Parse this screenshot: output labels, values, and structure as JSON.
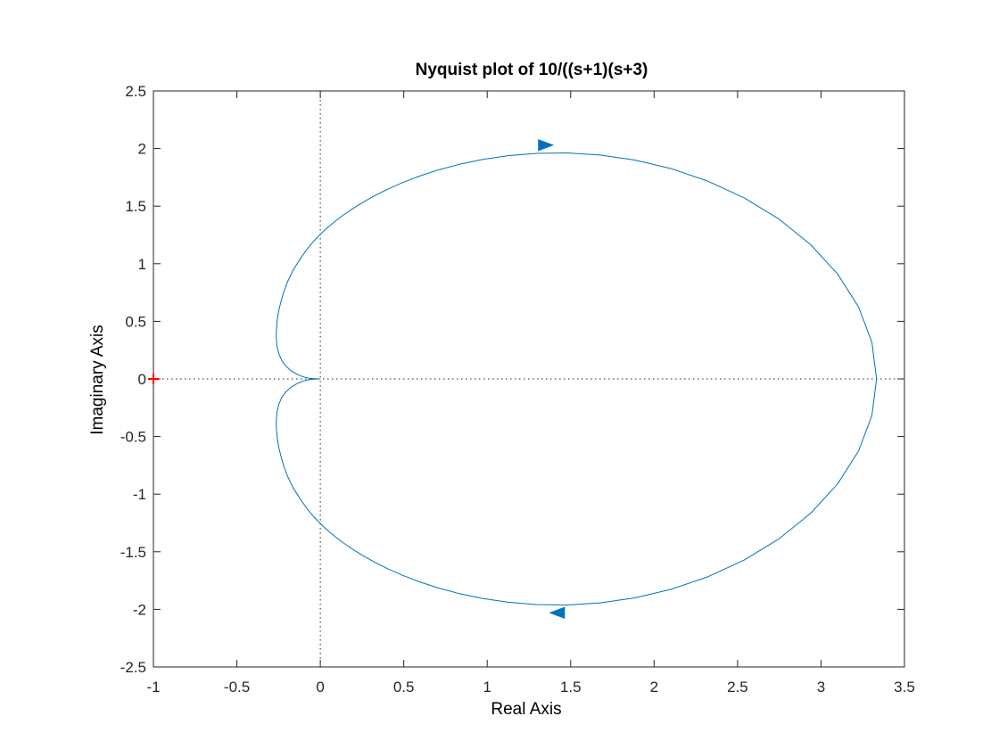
{
  "chart_data": {
    "type": "line",
    "title": "Nyquist plot of 10/((s+1)(s+3)",
    "xlabel": "Real Axis",
    "ylabel": "Imaginary Axis",
    "xlim": [
      -1,
      3.5
    ],
    "ylim": [
      -2.5,
      2.5
    ],
    "xticks": [
      "-1",
      "-0.5",
      "0",
      "0.5",
      "1",
      "1.5",
      "2",
      "2.5",
      "3",
      "3.5"
    ],
    "yticks": [
      "2.5",
      "2",
      "1.5",
      "1",
      "0.5",
      "0",
      "-0.5",
      "-1",
      "-1.5",
      "-2",
      "-2.5"
    ],
    "grid": false,
    "series": [
      {
        "color": "#0072BD",
        "x": [
          3.333,
          3.305,
          3.225,
          3.1,
          2.938,
          2.748,
          2.54,
          2.322,
          2.102,
          1.885,
          1.676,
          1.479,
          1.295,
          1.125,
          0.971,
          0.832,
          0.706,
          0.594,
          0.494,
          0.405,
          0.326,
          0.256,
          0.194,
          0.139,
          0.091,
          0.048,
          0.011,
          -0.021,
          -0.05,
          -0.074,
          -0.115,
          -0.165,
          -0.198,
          -0.221,
          -0.237,
          -0.249,
          -0.257,
          -0.261,
          -0.264,
          -0.264,
          -0.259,
          -0.246,
          -0.23,
          -0.21,
          -0.175,
          -0.144,
          -0.104,
          -0.073,
          -0.046,
          -0.023,
          -0.01,
          0
        ],
        "y": [
          0,
          -0.318,
          -0.625,
          -0.91,
          -1.166,
          -1.388,
          -1.572,
          -1.717,
          -1.826,
          -1.9,
          -1.944,
          -1.962,
          -1.958,
          -1.938,
          -1.905,
          -1.863,
          -1.814,
          -1.761,
          -1.705,
          -1.648,
          -1.591,
          -1.534,
          -1.478,
          -1.424,
          -1.371,
          -1.32,
          -1.271,
          -1.224,
          -1.179,
          -1.136,
          -1.054,
          -0.94,
          -0.838,
          -0.747,
          -0.665,
          -0.592,
          -0.526,
          -0.466,
          -0.411,
          -0.362,
          -0.279,
          -0.21,
          -0.159,
          -0.117,
          -0.071,
          -0.044,
          -0.019,
          -0.008,
          -0.003,
          -0.001,
          0,
          0
        ]
      },
      {
        "color": "#0072BD",
        "x": [
          3.333,
          3.305,
          3.225,
          3.1,
          2.938,
          2.748,
          2.54,
          2.322,
          2.102,
          1.885,
          1.676,
          1.479,
          1.295,
          1.125,
          0.971,
          0.832,
          0.706,
          0.594,
          0.494,
          0.405,
          0.326,
          0.256,
          0.194,
          0.139,
          0.091,
          0.048,
          0.011,
          -0.021,
          -0.05,
          -0.074,
          -0.115,
          -0.165,
          -0.198,
          -0.221,
          -0.237,
          -0.249,
          -0.257,
          -0.261,
          -0.264,
          -0.264,
          -0.259,
          -0.246,
          -0.23,
          -0.21,
          -0.175,
          -0.144,
          -0.104,
          -0.073,
          -0.046,
          -0.023,
          -0.01,
          0
        ],
        "y": [
          0,
          0.318,
          0.625,
          0.91,
          1.166,
          1.388,
          1.572,
          1.717,
          1.826,
          1.9,
          1.944,
          1.962,
          1.958,
          1.938,
          1.905,
          1.863,
          1.814,
          1.761,
          1.705,
          1.648,
          1.591,
          1.534,
          1.478,
          1.424,
          1.371,
          1.32,
          1.271,
          1.224,
          1.179,
          1.136,
          1.054,
          0.94,
          0.838,
          0.747,
          0.665,
          0.592,
          0.526,
          0.466,
          0.411,
          0.362,
          0.279,
          0.21,
          0.159,
          0.117,
          0.071,
          0.044,
          0.019,
          0.008,
          0.003,
          0.001,
          0,
          0
        ]
      }
    ],
    "arrows": [
      {
        "x": 1.35,
        "y": 2.03,
        "direction": "right",
        "color": "#0072BD"
      },
      {
        "x": 1.42,
        "y": -2.03,
        "direction": "left",
        "color": "#0072BD"
      }
    ],
    "critical_point": {
      "x": -1,
      "y": 0,
      "marker": "+",
      "color": "#FF0000"
    },
    "reference_lines": {
      "style": "dotted",
      "color": "#262626",
      "x": 0,
      "y": 0
    },
    "axis_color": "#262626"
  }
}
